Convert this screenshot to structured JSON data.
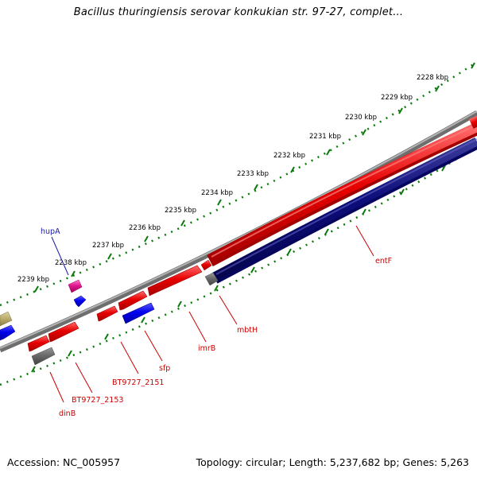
{
  "title": "Bacillus thuringiensis serovar konkukian str. 97-27, complet...",
  "footer": {
    "accession": "Accession: NC_005957",
    "topology": "Topology: circular; Length: 5,237,682 bp; Genes: 5,263"
  },
  "colors": {
    "forward_cds": "#e60000",
    "reverse_cds": "#0000ee",
    "reverse_band": "#0c0c7a",
    "rna": "#e0188e",
    "other": "#707070",
    "khaki": "#bdb070",
    "backbone": "#808080",
    "ticks": "#0a7a0a",
    "label_red": "#cc0000",
    "label_blue": "#1a1aaa"
  },
  "kbp_labels": [
    "2228 kbp",
    "2229 kbp",
    "2230 kbp",
    "2231 kbp",
    "2232 kbp",
    "2233 kbp",
    "2234 kbp",
    "2235 kbp",
    "2236 kbp",
    "2237 kbp",
    "2238 kbp",
    "2239 kbp"
  ],
  "gene_labels": [
    {
      "name": "hupA",
      "type": "rna"
    },
    {
      "name": "entF",
      "type": "cds"
    },
    {
      "name": "mbtH",
      "type": "cds"
    },
    {
      "name": "imrB",
      "type": "cds"
    },
    {
      "name": "sfp",
      "type": "cds"
    },
    {
      "name": "BT9727_2151",
      "type": "cds"
    },
    {
      "name": "BT9727_2153",
      "type": "cds"
    },
    {
      "name": "dinB",
      "type": "cds"
    }
  ]
}
